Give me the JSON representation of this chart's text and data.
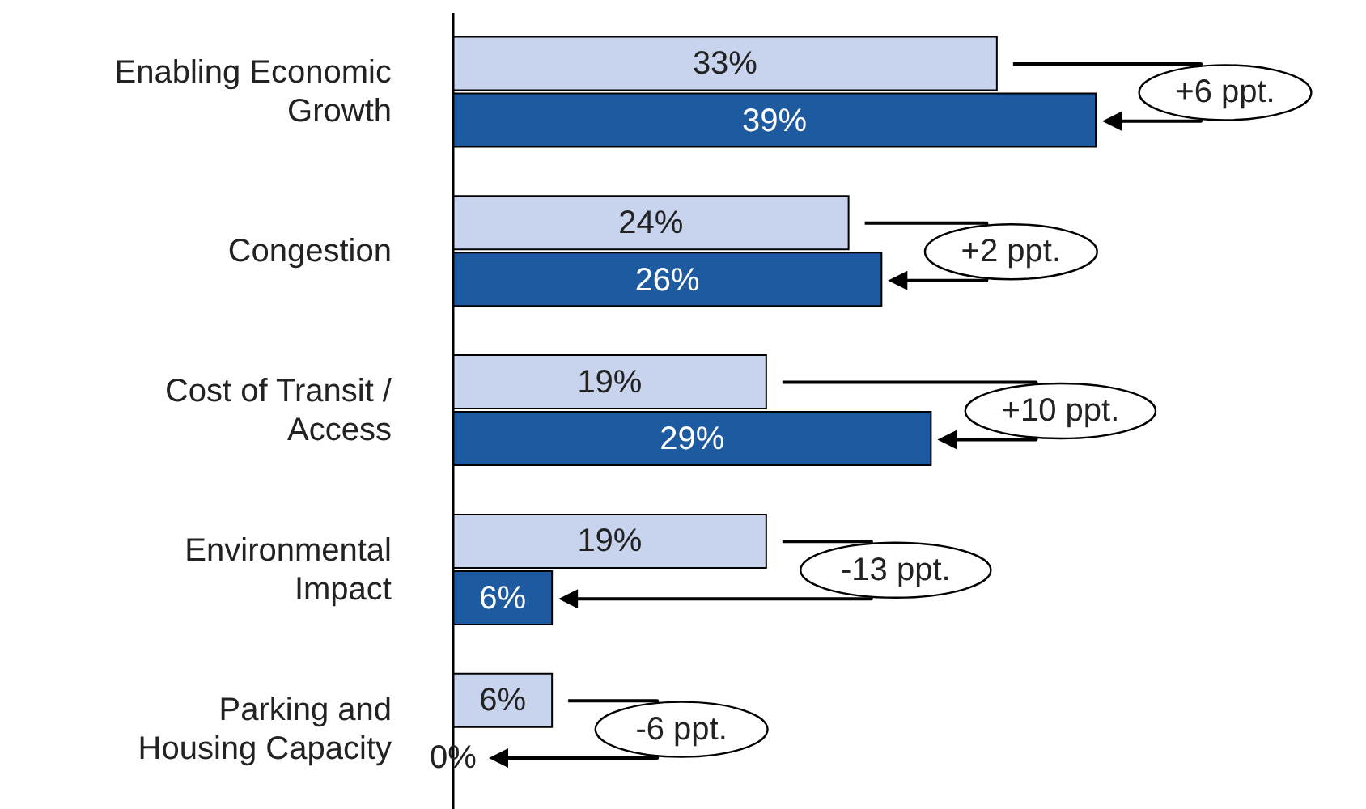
{
  "chart_data": {
    "type": "bar",
    "orientation": "horizontal",
    "categories": [
      "Enabling Economic\nGrowth",
      "Congestion",
      "Cost of Transit /\nAccess",
      "Environmental\nImpact",
      "Parking and\nHousing Capacity"
    ],
    "series": [
      {
        "color": "#c8d4ee",
        "values": [
          33,
          24,
          19,
          19,
          6
        ],
        "value_labels": [
          "33%",
          "24%",
          "19%",
          "19%",
          "6%"
        ]
      },
      {
        "color": "#1e5aa0",
        "values": [
          39,
          26,
          29,
          6,
          0
        ],
        "value_labels": [
          "39%",
          "26%",
          "29%",
          "6%",
          "0%"
        ]
      }
    ],
    "annotations": [
      "+6 ppt.",
      "+2 ppt.",
      "+10 ppt.",
      "-13 ppt.",
      "-6 ppt."
    ]
  }
}
